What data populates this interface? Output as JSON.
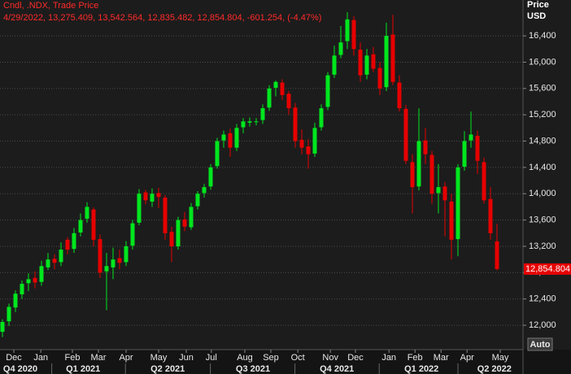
{
  "chart_data": {
    "type": "candlestick",
    "title": "Cndl, .NDX, Trade Price",
    "subtitle": "4/29/2022, 13,275.409, 13,542.564, 12,835.482, 12,854.804, -601.254, (-4.47%)",
    "ylabel": "Price",
    "yunit": "USD",
    "button": "Auto",
    "last_label": "12,854.804",
    "up_color": "#00e61e",
    "down_color": "#e60000",
    "grid": true,
    "ylim": [
      11630,
      16945
    ],
    "yticks": [
      {
        "value": 12000,
        "label": "12,000"
      },
      {
        "value": 12400,
        "label": "12,400"
      },
      {
        "value": 12800,
        "label": "12,800"
      },
      {
        "value": 13200,
        "label": "13,200"
      },
      {
        "value": 13600,
        "label": "13,600"
      },
      {
        "value": 14000,
        "label": "14,000"
      },
      {
        "value": 14400,
        "label": "14,400"
      },
      {
        "value": 14800,
        "label": "14,800"
      },
      {
        "value": 15200,
        "label": "15,200"
      },
      {
        "value": 15600,
        "label": "15,600"
      },
      {
        "value": 16000,
        "label": "16,000"
      },
      {
        "value": 16400,
        "label": "16,400"
      }
    ],
    "xlim": [
      -0.375,
      80
    ],
    "xticks": [
      {
        "value": 1.75,
        "label": "Dec"
      },
      {
        "value": 5.9,
        "label": "Jan"
      },
      {
        "value": 10.75,
        "label": "Feb"
      },
      {
        "value": 14.75,
        "label": "Mar"
      },
      {
        "value": 19,
        "label": "Apr"
      },
      {
        "value": 24,
        "label": "May"
      },
      {
        "value": 28.25,
        "label": "Jun"
      },
      {
        "value": 32.1,
        "label": "Jul"
      },
      {
        "value": 37.25,
        "label": "Aug"
      },
      {
        "value": 41.25,
        "label": "Sep"
      },
      {
        "value": 45.4,
        "label": "Oct"
      },
      {
        "value": 50.4,
        "label": "Nov"
      },
      {
        "value": 54.25,
        "label": "Dec"
      },
      {
        "value": 59.4,
        "label": "Jan"
      },
      {
        "value": 63.4,
        "label": "Feb"
      },
      {
        "value": 67.4,
        "label": "Mar"
      },
      {
        "value": 71.4,
        "label": "Apr"
      },
      {
        "value": 76.5,
        "label": "May"
      }
    ],
    "quarter_ticks": [
      {
        "value": 2.75,
        "label": "Q4 2020"
      },
      {
        "value": 12.4,
        "label": "Q1 2021"
      },
      {
        "value": 25.4,
        "label": "Q2 2021"
      },
      {
        "value": 38.5,
        "label": "Q3 2021"
      },
      {
        "value": 51.4,
        "label": "Q4 2021"
      },
      {
        "value": 64.4,
        "label": "Q1 2022"
      },
      {
        "value": 75.6,
        "label": "Q2 2022"
      }
    ],
    "open": [
      11900,
      12060,
      12270,
      12470,
      12640,
      12720,
      12660,
      12880,
      13010,
      12960,
      13300,
      13160,
      13410,
      13620,
      13760,
      13310,
      12820,
      12880,
      13020,
      12960,
      13210,
      13560,
      14020,
      13880,
      14010,
      13940,
      13420,
      13200,
      13610,
      13490,
      13810,
      14010,
      14110,
      14420,
      14810,
      14920,
      14700,
      15010,
      15080,
      15090,
      15120,
      15310,
      15610,
      15690,
      15520,
      15310,
      14820,
      14720,
      14610,
      15010,
      15320,
      15810,
      16110,
      16320,
      16640,
      16190,
      15810,
      16120,
      15910,
      15620,
      16420,
      15690,
      15290,
      14480,
      14110,
      14810,
      14590,
      14010,
      14110,
      13880,
      13310,
      14410,
      14810,
      14880,
      14480,
      13920,
      13275.409
    ],
    "high": [
      12090,
      12330,
      12530,
      12680,
      12790,
      12820,
      12980,
      13100,
      13080,
      13260,
      13340,
      13480,
      13700,
      13870,
      13790,
      13380,
      13100,
      13180,
      13150,
      13280,
      13600,
      14070,
      14060,
      14080,
      14090,
      13980,
      13500,
      13650,
      13720,
      13860,
      14040,
      14150,
      14450,
      14850,
      14960,
      14990,
      15060,
      15150,
      15160,
      15150,
      15360,
      15650,
      15720,
      15740,
      15560,
      15380,
      14980,
      14830,
      15080,
      15360,
      15850,
      16250,
      16550,
      16760,
      16700,
      16300,
      16200,
      16230,
      16000,
      16600,
      16720,
      15800,
      15350,
      14600,
      15300,
      15000,
      14650,
      14450,
      14180,
      14000,
      14450,
      14950,
      15250,
      14960,
      14550,
      14100,
      13542.564
    ],
    "low": [
      11820,
      11990,
      12200,
      12400,
      12520,
      12560,
      12600,
      12840,
      12850,
      12900,
      13080,
      13100,
      13350,
      13560,
      13200,
      12720,
      12230,
      12700,
      12850,
      12900,
      13150,
      13520,
      13840,
      13800,
      13780,
      13300,
      12960,
      13150,
      13430,
      13450,
      13760,
      13940,
      14060,
      14380,
      14700,
      14560,
      14650,
      14920,
      15020,
      15040,
      15060,
      15260,
      15480,
      15430,
      15200,
      14700,
      14600,
      14380,
      14560,
      14960,
      15270,
      15760,
      16060,
      16200,
      16100,
      15700,
      15740,
      15850,
      15500,
      15560,
      15650,
      15250,
      14450,
      13700,
      14050,
      14450,
      13850,
      13700,
      13350,
      13000,
      13050,
      14350,
      14700,
      14300,
      13850,
      13300,
      12835.482
    ],
    "close": [
      12050,
      12280,
      12480,
      12630,
      12700,
      12650,
      12900,
      13000,
      12950,
      13150,
      13150,
      13400,
      13600,
      13800,
      13300,
      12800,
      12900,
      13000,
      12950,
      13200,
      13550,
      14000,
      13900,
      14000,
      13950,
      13400,
      13200,
      13600,
      13500,
      13800,
      14000,
      14100,
      14400,
      14800,
      14900,
      14700,
      15000,
      15100,
      15100,
      15100,
      15300,
      15600,
      15700,
      15500,
      15300,
      14800,
      14700,
      14600,
      15000,
      15300,
      15800,
      16100,
      16300,
      16650,
      16200,
      15800,
      16100,
      15900,
      15600,
      16400,
      15700,
      15300,
      14500,
      14100,
      14800,
      14600,
      14000,
      14100,
      13900,
      13300,
      14400,
      14800,
      14900,
      14500,
      13900,
      13400,
      12854.804
    ]
  }
}
